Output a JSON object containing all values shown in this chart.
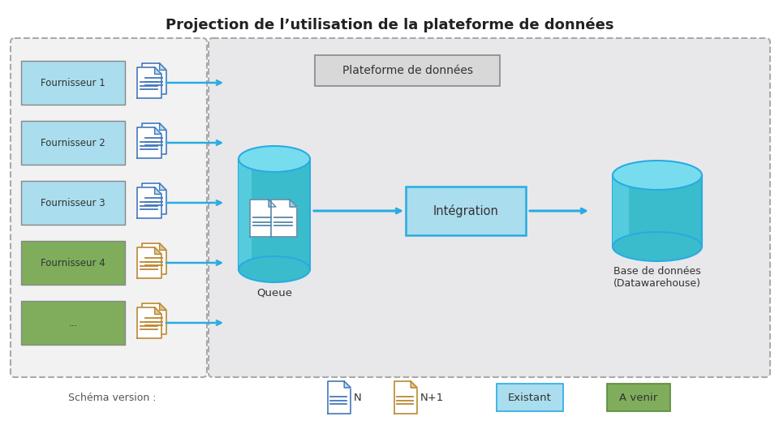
{
  "title": "Projection de l’utilisation de la plateforme de données",
  "title_fontsize": 13,
  "white": "#ffffff",
  "cyan_box": "#aaddee",
  "cyan_dark": "#29abe2",
  "green_box": "#7fad5c",
  "fournisseurs": [
    "Fournisseur 1",
    "Fournisseur 2",
    "Fournisseur 3",
    "Fournisseur 4",
    "..."
  ],
  "fournisseur_colors": [
    "#aaddee",
    "#aaddee",
    "#aaddee",
    "#7fad5c",
    "#7fad5c"
  ]
}
